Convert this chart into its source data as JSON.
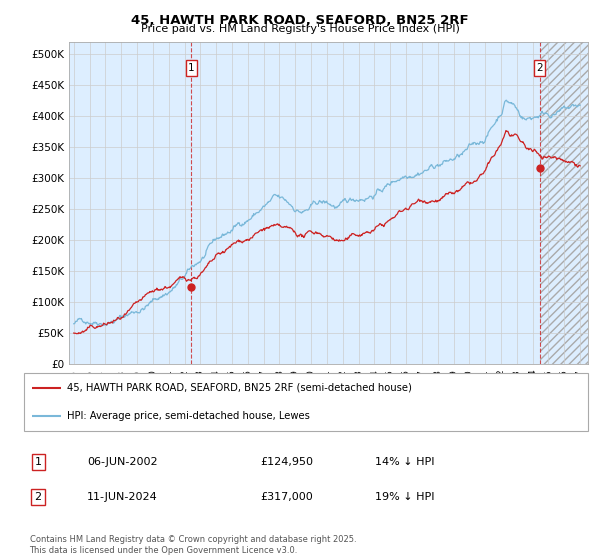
{
  "title": "45, HAWTH PARK ROAD, SEAFORD, BN25 2RF",
  "subtitle": "Price paid vs. HM Land Registry's House Price Index (HPI)",
  "ylim": [
    0,
    520000
  ],
  "ytick_labels": [
    "£0",
    "£50K",
    "£100K",
    "£150K",
    "£200K",
    "£250K",
    "£300K",
    "£350K",
    "£400K",
    "£450K",
    "£500K"
  ],
  "ytick_vals": [
    0,
    50000,
    100000,
    150000,
    200000,
    250000,
    300000,
    350000,
    400000,
    450000,
    500000
  ],
  "xlim_start": 1994.7,
  "xlim_end": 2027.5,
  "xtick_years": [
    1995,
    1996,
    1997,
    1998,
    1999,
    2000,
    2001,
    2002,
    2003,
    2004,
    2005,
    2006,
    2007,
    2008,
    2009,
    2010,
    2011,
    2012,
    2013,
    2014,
    2015,
    2016,
    2017,
    2018,
    2019,
    2020,
    2021,
    2022,
    2023,
    2024,
    2025,
    2026,
    2027
  ],
  "hpi_color": "#7ab8d9",
  "price_color": "#cc2222",
  "marker1_x": 2002.44,
  "marker2_x": 2024.44,
  "marker1_y": 124950,
  "marker2_y": 317000,
  "legend_line1": "45, HAWTH PARK ROAD, SEAFORD, BN25 2RF (semi-detached house)",
  "legend_line2": "HPI: Average price, semi-detached house, Lewes",
  "table_row1": [
    "1",
    "06-JUN-2002",
    "£124,950",
    "14% ↓ HPI"
  ],
  "table_row2": [
    "2",
    "11-JUN-2024",
    "£317,000",
    "19% ↓ HPI"
  ],
  "footer": "Contains HM Land Registry data © Crown copyright and database right 2025.\nThis data is licensed under the Open Government Licence v3.0.",
  "bg_color": "#ffffff",
  "grid_color": "#cccccc",
  "plot_bg_color": "#ddeeff"
}
